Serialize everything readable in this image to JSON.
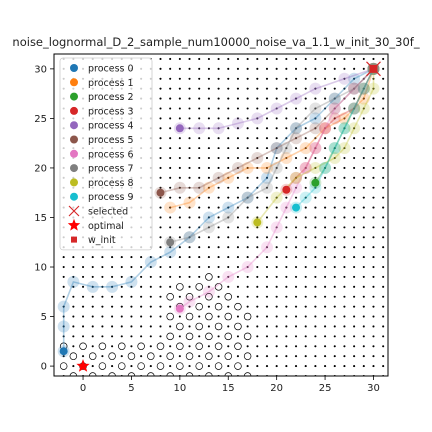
{
  "chart_data": {
    "type": "scatter",
    "title": "noise_lognormal_D_2_sample_num10000_noise_va_1.1_w_init_30_30f_",
    "xlabel": "",
    "ylabel": "",
    "xlim": [
      -3,
      31.5
    ],
    "ylim": [
      -1,
      31.5
    ],
    "xticks": [
      0,
      5,
      10,
      15,
      20,
      25,
      30
    ],
    "yticks": [
      0,
      5,
      10,
      15,
      20,
      25,
      30
    ],
    "grid": false,
    "legend_position": "upper-left",
    "legend": [
      {
        "label": "process 0",
        "marker": "circle",
        "color": "#1f77b4"
      },
      {
        "label": "process 1",
        "marker": "circle",
        "color": "#ff7f0e"
      },
      {
        "label": "process 2",
        "marker": "circle",
        "color": "#2ca02c"
      },
      {
        "label": "process 3",
        "marker": "circle",
        "color": "#d62728"
      },
      {
        "label": "process 4",
        "marker": "circle",
        "color": "#9467bd"
      },
      {
        "label": "process 5",
        "marker": "circle",
        "color": "#8c564b"
      },
      {
        "label": "process 6",
        "marker": "circle",
        "color": "#e377c2"
      },
      {
        "label": "process 7",
        "marker": "circle",
        "color": "#7f7f7f"
      },
      {
        "label": "process 8",
        "marker": "circle",
        "color": "#bcbd22"
      },
      {
        "label": "process 9",
        "marker": "circle",
        "color": "#17becf"
      },
      {
        "label": "selected",
        "marker": "x",
        "color": "#d62728"
      },
      {
        "label": "optimal",
        "marker": "star",
        "color": "#ff0000"
      },
      {
        "label": "w_init",
        "marker": "square",
        "color": "#d62728"
      }
    ],
    "optimal": [
      0,
      0
    ],
    "w_init": [
      30,
      30
    ],
    "final_points": [
      {
        "process": 0,
        "x": -2,
        "y": 1.5
      },
      {
        "process": 3,
        "x": 21,
        "y": 17.8
      },
      {
        "process": 2,
        "x": 24,
        "y": 18.5
      },
      {
        "process": 4,
        "x": 10,
        "y": 24
      },
      {
        "process": 5,
        "x": 8,
        "y": 17.5
      },
      {
        "process": 6,
        "x": 10,
        "y": 5.8
      },
      {
        "process": 7,
        "x": 9,
        "y": 12.5
      },
      {
        "process": 8,
        "x": 18,
        "y": 14.5
      },
      {
        "process": 9,
        "x": 22,
        "y": 16
      }
    ],
    "paths": [
      {
        "process": 0,
        "points": [
          [
            30,
            30
          ],
          [
            28,
            29
          ],
          [
            26,
            27
          ],
          [
            24,
            25
          ],
          [
            22,
            24
          ],
          [
            20,
            22
          ],
          [
            19,
            19
          ],
          [
            17,
            17
          ],
          [
            15,
            16
          ],
          [
            13,
            15
          ],
          [
            11,
            13
          ],
          [
            9,
            11.5
          ],
          [
            7,
            10.5
          ],
          [
            5,
            8.5
          ],
          [
            3,
            8
          ],
          [
            1,
            8
          ],
          [
            -1,
            8.5
          ],
          [
            -2,
            6
          ],
          [
            -2,
            4
          ],
          [
            -2,
            1.5
          ]
        ]
      },
      {
        "process": 1,
        "points": [
          [
            30,
            30
          ],
          [
            29,
            27
          ],
          [
            27,
            25
          ],
          [
            25,
            24
          ],
          [
            23,
            22
          ],
          [
            21,
            21
          ],
          [
            19,
            20
          ],
          [
            17,
            20
          ],
          [
            15,
            19
          ],
          [
            13,
            18
          ],
          [
            11,
            16.5
          ],
          [
            9,
            16
          ]
        ]
      },
      {
        "process": 2,
        "points": [
          [
            30,
            30
          ],
          [
            29,
            28
          ],
          [
            28,
            26
          ],
          [
            27,
            24
          ],
          [
            26,
            22
          ],
          [
            25,
            20
          ],
          [
            24,
            18.5
          ]
        ]
      },
      {
        "process": 3,
        "points": [
          [
            30,
            30
          ],
          [
            29,
            28
          ],
          [
            28,
            26
          ],
          [
            26,
            25
          ],
          [
            25,
            24
          ],
          [
            24,
            22
          ],
          [
            23,
            20
          ],
          [
            22,
            19
          ],
          [
            21,
            17.8
          ]
        ]
      },
      {
        "process": 4,
        "points": [
          [
            30,
            30
          ],
          [
            27,
            29
          ],
          [
            24,
            28
          ],
          [
            22,
            27
          ],
          [
            20,
            26
          ],
          [
            18,
            25
          ],
          [
            16,
            24.5
          ],
          [
            14,
            24
          ],
          [
            12,
            24
          ],
          [
            10,
            24
          ]
        ]
      },
      {
        "process": 5,
        "points": [
          [
            30,
            30
          ],
          [
            28,
            28
          ],
          [
            26,
            26
          ],
          [
            24,
            24
          ],
          [
            22,
            23
          ],
          [
            20,
            22
          ],
          [
            18,
            21
          ],
          [
            16,
            20
          ],
          [
            14,
            19
          ],
          [
            12,
            18
          ],
          [
            10,
            18
          ],
          [
            8,
            17.5
          ]
        ]
      },
      {
        "process": 6,
        "points": [
          [
            30,
            30
          ],
          [
            28,
            28
          ],
          [
            26,
            26
          ],
          [
            25,
            24
          ],
          [
            24,
            22
          ],
          [
            23,
            20
          ],
          [
            22,
            18
          ],
          [
            21,
            16
          ],
          [
            20,
            14
          ],
          [
            19,
            12
          ],
          [
            17,
            10
          ],
          [
            15,
            9
          ],
          [
            13,
            7.5
          ],
          [
            11,
            6.5
          ],
          [
            10,
            5.8
          ]
        ]
      },
      {
        "process": 7,
        "points": [
          [
            30,
            30
          ],
          [
            28,
            28
          ],
          [
            26,
            27
          ],
          [
            24,
            26
          ],
          [
            22,
            24
          ],
          [
            21,
            22
          ],
          [
            20,
            20
          ],
          [
            19,
            18
          ],
          [
            17,
            17
          ],
          [
            15,
            15
          ],
          [
            13,
            14
          ],
          [
            11,
            13
          ],
          [
            9,
            12.5
          ]
        ]
      },
      {
        "process": 8,
        "points": [
          [
            30,
            30
          ],
          [
            30,
            28
          ],
          [
            29,
            26
          ],
          [
            28,
            24
          ],
          [
            27,
            22
          ],
          [
            26,
            21
          ],
          [
            24,
            20
          ],
          [
            22,
            19
          ],
          [
            20,
            17
          ],
          [
            18,
            14.5
          ]
        ]
      },
      {
        "process": 9,
        "points": [
          [
            30,
            30
          ],
          [
            29,
            28
          ],
          [
            28,
            26
          ],
          [
            27,
            24
          ],
          [
            26,
            22
          ],
          [
            25,
            20
          ],
          [
            24,
            18
          ],
          [
            23,
            17
          ],
          [
            22,
            16
          ]
        ]
      }
    ]
  }
}
